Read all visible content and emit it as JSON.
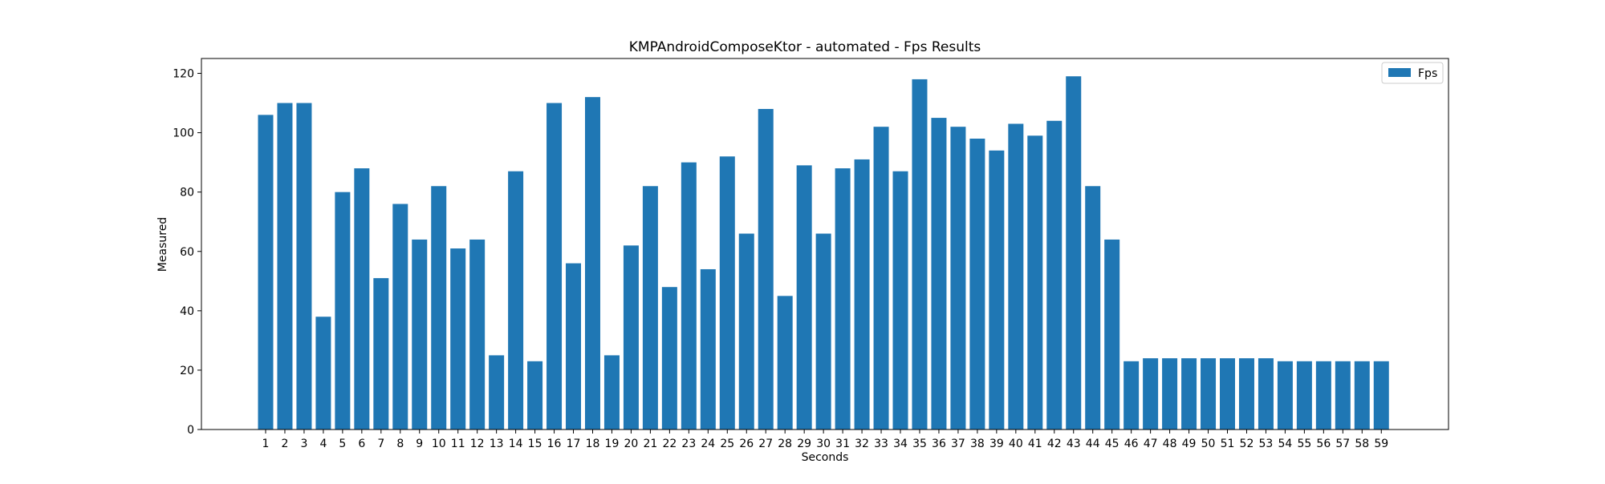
{
  "chart_data": {
    "type": "bar",
    "title": "KMPAndroidComposeKtor - automated - Fps Results",
    "xlabel": "Seconds",
    "ylabel": "Measured",
    "ylim": [
      0,
      125
    ],
    "yticks": [
      0,
      20,
      40,
      60,
      80,
      100,
      120
    ],
    "grid": false,
    "legend_position": "upper right",
    "categories": [
      "1",
      "2",
      "3",
      "4",
      "5",
      "6",
      "7",
      "8",
      "9",
      "10",
      "11",
      "12",
      "13",
      "14",
      "15",
      "16",
      "17",
      "18",
      "19",
      "20",
      "21",
      "22",
      "23",
      "24",
      "25",
      "26",
      "27",
      "28",
      "29",
      "30",
      "31",
      "32",
      "33",
      "34",
      "35",
      "36",
      "37",
      "38",
      "39",
      "40",
      "41",
      "42",
      "43",
      "44",
      "45",
      "46",
      "47",
      "48",
      "49",
      "50",
      "51",
      "52",
      "53",
      "54",
      "55",
      "56",
      "57",
      "58",
      "59"
    ],
    "series": [
      {
        "name": "Fps",
        "color": "#1f77b4",
        "values": [
          106,
          110,
          110,
          38,
          80,
          88,
          51,
          76,
          64,
          82,
          61,
          64,
          25,
          87,
          23,
          110,
          56,
          112,
          25,
          62,
          82,
          48,
          90,
          54,
          92,
          66,
          108,
          45,
          89,
          66,
          88,
          91,
          102,
          87,
          118,
          105,
          102,
          98,
          94,
          103,
          99,
          104,
          119,
          82,
          64,
          23,
          24,
          24,
          24,
          24,
          24,
          24,
          24,
          23,
          23,
          23,
          23,
          23,
          23
        ]
      }
    ]
  }
}
